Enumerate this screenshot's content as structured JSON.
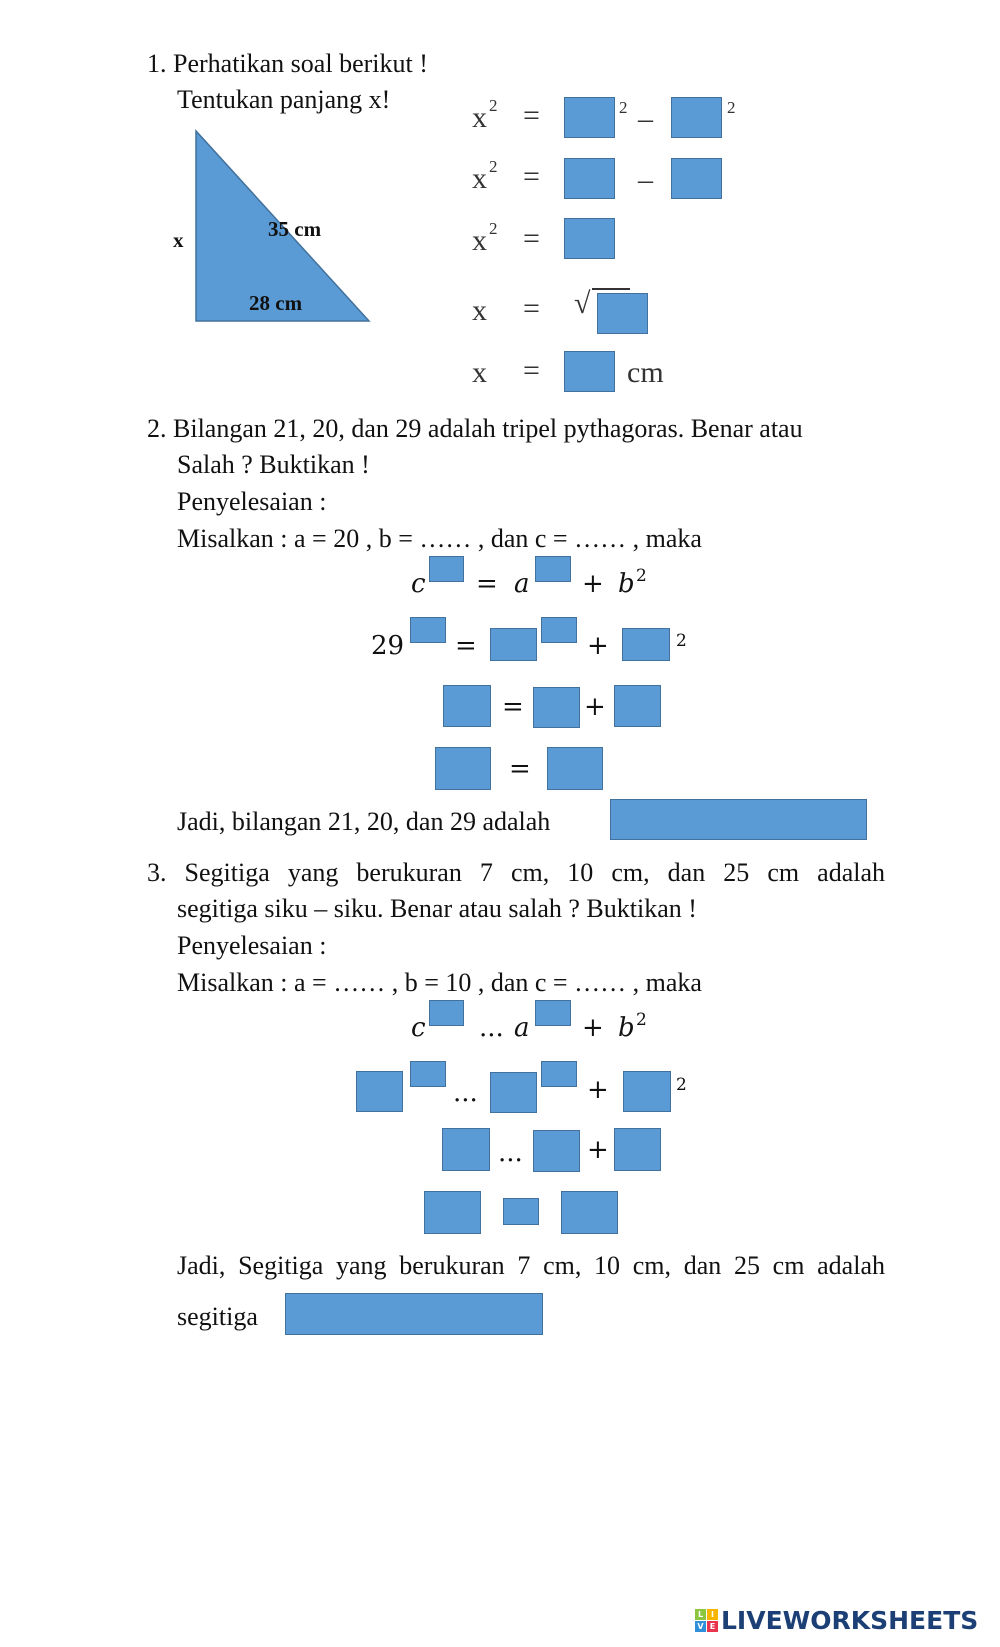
{
  "q1": {
    "line1": "1. Perhatikan soal berikut !",
    "line2": "Tentukan panjang x!",
    "triangle": {
      "side_x": "x",
      "hyp": "35 cm",
      "base": "28 cm",
      "color": "#5b9bd5"
    },
    "eq": {
      "x": "x",
      "x2": "x",
      "sup2": "2",
      "equals": "=",
      "minus": "–",
      "sqrt": "√",
      "unit": "cm"
    }
  },
  "q2": {
    "line1": "2. Bilangan 21, 20, dan 29 adalah tripel pythagoras. Benar atau",
    "line2": "Salah ? Buktikan !",
    "line3": "Penyelesaian :",
    "line4": "Misalkan : a = 20 , b = …… , dan c = …… , maka",
    "m": {
      "c": "c",
      "a": "a",
      "b": "b",
      "two": "2",
      "eq": "=",
      "plus": "+",
      "n29": "29"
    },
    "conclusion": "Jadi, bilangan 21, 20, dan 29 adalah"
  },
  "q3": {
    "line1": "3. Segitiga yang berukuran 7 cm, 10 cm, dan 25 cm adalah",
    "line2": "segitiga siku – siku. Benar atau salah ? Buktikan !",
    "line3": "Penyelesaian :",
    "line4": "Misalkan : a = …… , b = 10 , dan c = ……  , maka",
    "m": {
      "c": "c",
      "a": "a",
      "b": "b",
      "two": "2",
      "dots": "...",
      "plus": "+"
    },
    "conclusion": "Jadi, Segitiga yang berukuran 7 cm, 10 cm, dan 25 cm adalah",
    "conclusion2": "segitiga"
  },
  "colors": {
    "answer_box": "#5b9bd5",
    "answer_border": "#41719c",
    "logo_text": "#1c3f75"
  },
  "logo": {
    "text": "LIVEWORKSHEETS",
    "tiles": [
      "L",
      "I",
      "V",
      "E"
    ]
  }
}
